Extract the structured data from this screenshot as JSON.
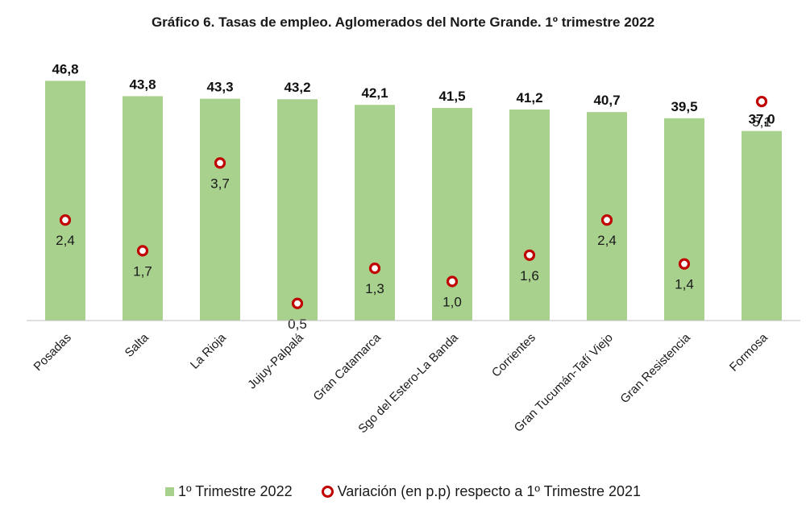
{
  "chart_data": {
    "type": "bar",
    "title": "Gráfico 6. Tasas de empleo. Aglomerados del Norte Grande. 1º trimestre 2022",
    "categories": [
      "Posadas",
      "Salta",
      "La Rioja",
      "Jujuy-Palpalá",
      "Gran Catamarca",
      "Sgo del Estero-La Banda",
      "Corrientes",
      "Gran Tucumán-Tafí Viejo",
      "Gran Resistencia",
      "Formosa"
    ],
    "series": [
      {
        "name": "1º Trimestre 2022",
        "kind": "bar",
        "values": [
          46.8,
          43.8,
          43.3,
          43.2,
          42.1,
          41.5,
          41.2,
          40.7,
          39.5,
          37.0
        ],
        "labels": [
          "46,8",
          "43,8",
          "43,3",
          "43,2",
          "42,1",
          "41,5",
          "41,2",
          "40,7",
          "39,5",
          "37,0"
        ],
        "color": "#a9d18e"
      },
      {
        "name": "Variación (en p.p) respecto a 1º Trimestre 2021",
        "kind": "marker",
        "values": [
          2.4,
          1.7,
          3.7,
          0.5,
          1.3,
          1.0,
          1.6,
          2.4,
          1.4,
          5.1
        ],
        "labels": [
          "2,4",
          "1,7",
          "3,7",
          "0,5",
          "1,3",
          "1,0",
          "1,6",
          "2,4",
          "1,4",
          "5,1"
        ],
        "color": "#c00000"
      }
    ],
    "bar_axis": {
      "min": 0,
      "max": 50
    },
    "marker_axis": {
      "min": 0,
      "max": 6
    },
    "xlabel": "",
    "ylabel": "",
    "grid": false,
    "legend_position": "bottom"
  }
}
